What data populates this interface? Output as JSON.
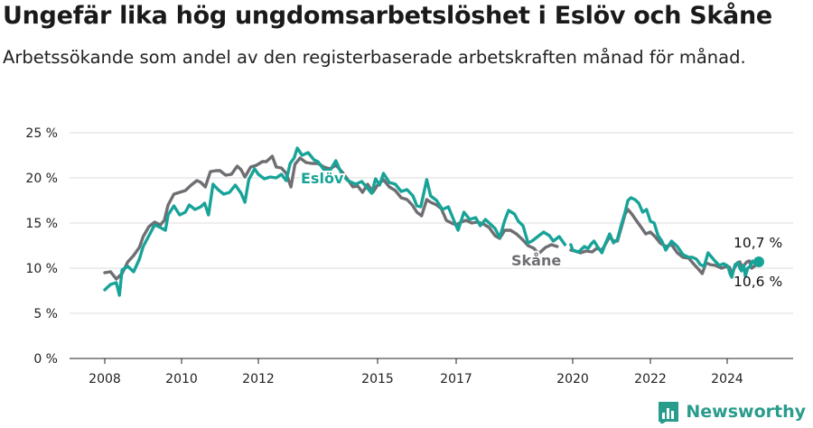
{
  "header": {
    "title": "Ungefär lika hög ungdomsarbetslöshet i Eslöv och Skåne",
    "subtitle": "Arbetssökande som andel av den registerbaserade arbetskraften månad för månad."
  },
  "brand": {
    "name": "Newsworthy",
    "color": "#2a9c8c",
    "icon": "bar-chart-logo-icon"
  },
  "chart_data": {
    "type": "line",
    "x_ticks": [
      2008,
      2010,
      2012,
      2015,
      2017,
      2020,
      2022,
      2024
    ],
    "y_ticks": [
      0,
      5,
      10,
      15,
      20,
      25
    ],
    "y_tick_labels": [
      "0 %",
      "5 %",
      "10 %",
      "15 %",
      "20 %",
      "25 %"
    ],
    "ylim": [
      0,
      25
    ],
    "xlim": [
      2007.5,
      2025.25
    ],
    "grid": true,
    "series": [
      {
        "name": "Eslöv",
        "color": "#17a398",
        "end_label": "10,7 %",
        "points": [
          [
            2008.0,
            7.6
          ],
          [
            2008.15,
            8.2
          ],
          [
            2008.3,
            8.4
          ],
          [
            2008.38,
            7.0
          ],
          [
            2008.45,
            9.8
          ],
          [
            2008.6,
            10.2
          ],
          [
            2008.75,
            9.6
          ],
          [
            2008.9,
            11.0
          ],
          [
            2009.0,
            12.4
          ],
          [
            2009.15,
            13.6
          ],
          [
            2009.3,
            14.8
          ],
          [
            2009.45,
            14.5
          ],
          [
            2009.58,
            14.2
          ],
          [
            2009.65,
            15.9
          ],
          [
            2009.8,
            16.9
          ],
          [
            2009.95,
            15.9
          ],
          [
            2010.1,
            16.2
          ],
          [
            2010.2,
            17.0
          ],
          [
            2010.35,
            16.5
          ],
          [
            2010.5,
            16.8
          ],
          [
            2010.6,
            17.2
          ],
          [
            2010.7,
            15.9
          ],
          [
            2010.82,
            19.3
          ],
          [
            2010.95,
            18.7
          ],
          [
            2011.1,
            18.2
          ],
          [
            2011.25,
            18.4
          ],
          [
            2011.4,
            19.2
          ],
          [
            2011.55,
            18.3
          ],
          [
            2011.65,
            17.3
          ],
          [
            2011.75,
            19.8
          ],
          [
            2011.9,
            21.0
          ],
          [
            2012.0,
            20.4
          ],
          [
            2012.15,
            19.9
          ],
          [
            2012.3,
            20.1
          ],
          [
            2012.45,
            20.0
          ],
          [
            2012.58,
            20.4
          ],
          [
            2012.7,
            19.7
          ],
          [
            2012.8,
            21.6
          ],
          [
            2012.9,
            22.2
          ],
          [
            2012.98,
            23.3
          ],
          [
            2013.1,
            22.5
          ],
          [
            2013.25,
            22.8
          ],
          [
            2013.4,
            22.0
          ],
          [
            2013.5,
            21.8
          ],
          [
            2013.65,
            20.9
          ],
          [
            2013.8,
            20.8
          ],
          [
            2013.95,
            21.9
          ],
          [
            2014.1,
            20.4
          ],
          [
            2014.25,
            19.7
          ],
          [
            2014.45,
            19.3
          ],
          [
            2014.6,
            19.6
          ],
          [
            2014.72,
            19.0
          ],
          [
            2014.85,
            18.3
          ],
          [
            2014.95,
            19.9
          ],
          [
            2015.05,
            19.2
          ],
          [
            2015.15,
            20.5
          ],
          [
            2015.3,
            19.5
          ],
          [
            2015.45,
            19.3
          ],
          [
            2015.6,
            18.5
          ],
          [
            2015.75,
            18.7
          ],
          [
            2015.9,
            18.0
          ],
          [
            2016.0,
            16.9
          ],
          [
            2016.1,
            16.8
          ],
          [
            2016.25,
            19.8
          ],
          [
            2016.35,
            18.0
          ],
          [
            2016.5,
            17.5
          ],
          [
            2016.65,
            16.5
          ],
          [
            2016.8,
            16.8
          ],
          [
            2016.95,
            15.2
          ],
          [
            2017.05,
            14.2
          ],
          [
            2017.2,
            16.2
          ],
          [
            2017.35,
            15.4
          ],
          [
            2017.5,
            15.6
          ],
          [
            2017.62,
            14.7
          ],
          [
            2017.75,
            15.4
          ],
          [
            2017.9,
            14.8
          ],
          [
            2018.0,
            14.4
          ],
          [
            2018.12,
            13.4
          ],
          [
            2018.25,
            15.3
          ],
          [
            2018.35,
            16.4
          ],
          [
            2018.5,
            16.0
          ],
          [
            2018.6,
            15.2
          ],
          [
            2018.72,
            14.7
          ],
          [
            2018.85,
            12.8
          ],
          [
            2018.95,
            13.0
          ],
          [
            2019.1,
            13.5
          ],
          [
            2019.25,
            14.0
          ],
          [
            2019.4,
            13.6
          ],
          [
            2019.5,
            13.0
          ],
          [
            2019.65,
            13.5
          ],
          [
            2019.8,
            12.6
          ]
        ]
      },
      {
        "name": "Skåne",
        "color": "#6e6e73",
        "end_label": "10,6 %",
        "points": [
          [
            2008.0,
            9.5
          ],
          [
            2008.15,
            9.6
          ],
          [
            2008.3,
            8.8
          ],
          [
            2008.45,
            9.4
          ],
          [
            2008.6,
            10.7
          ],
          [
            2008.75,
            11.4
          ],
          [
            2008.9,
            12.3
          ],
          [
            2009.0,
            13.5
          ],
          [
            2009.15,
            14.6
          ],
          [
            2009.3,
            15.1
          ],
          [
            2009.45,
            14.8
          ],
          [
            2009.55,
            15.3
          ],
          [
            2009.65,
            17.0
          ],
          [
            2009.8,
            18.2
          ],
          [
            2009.95,
            18.4
          ],
          [
            2010.1,
            18.6
          ],
          [
            2010.25,
            19.2
          ],
          [
            2010.4,
            19.7
          ],
          [
            2010.5,
            19.5
          ],
          [
            2010.62,
            19.0
          ],
          [
            2010.75,
            20.7
          ],
          [
            2010.9,
            20.8
          ],
          [
            2011.0,
            20.8
          ],
          [
            2011.15,
            20.3
          ],
          [
            2011.3,
            20.4
          ],
          [
            2011.45,
            21.3
          ],
          [
            2011.55,
            20.9
          ],
          [
            2011.65,
            20.1
          ],
          [
            2011.8,
            21.2
          ],
          [
            2011.95,
            21.4
          ],
          [
            2012.1,
            21.8
          ],
          [
            2012.2,
            21.8
          ],
          [
            2012.35,
            22.4
          ],
          [
            2012.45,
            21.2
          ],
          [
            2012.58,
            21.1
          ],
          [
            2012.7,
            20.5
          ],
          [
            2012.82,
            19.0
          ],
          [
            2012.92,
            21.5
          ],
          [
            2013.05,
            22.2
          ],
          [
            2013.2,
            21.7
          ],
          [
            2013.35,
            21.6
          ],
          [
            2013.5,
            21.6
          ],
          [
            2013.65,
            21.2
          ],
          [
            2013.8,
            21.0
          ],
          [
            2013.95,
            21.4
          ],
          [
            2014.1,
            20.7
          ],
          [
            2014.25,
            19.8
          ],
          [
            2014.38,
            19.0
          ],
          [
            2014.5,
            19.1
          ],
          [
            2014.62,
            18.4
          ],
          [
            2014.75,
            19.3
          ],
          [
            2014.88,
            18.4
          ],
          [
            2015.0,
            19.2
          ],
          [
            2015.15,
            19.8
          ],
          [
            2015.3,
            19.0
          ],
          [
            2015.45,
            18.6
          ],
          [
            2015.6,
            17.8
          ],
          [
            2015.75,
            17.6
          ],
          [
            2015.88,
            17.0
          ],
          [
            2016.0,
            16.2
          ],
          [
            2016.12,
            15.8
          ],
          [
            2016.25,
            17.6
          ],
          [
            2016.35,
            17.3
          ],
          [
            2016.5,
            17.0
          ],
          [
            2016.62,
            16.6
          ],
          [
            2016.75,
            15.3
          ],
          [
            2016.88,
            15.0
          ],
          [
            2017.0,
            14.8
          ],
          [
            2017.12,
            15.1
          ],
          [
            2017.25,
            15.3
          ],
          [
            2017.4,
            15.0
          ],
          [
            2017.55,
            15.1
          ],
          [
            2017.7,
            14.9
          ],
          [
            2017.85,
            14.5
          ],
          [
            2018.0,
            13.6
          ],
          [
            2018.12,
            13.3
          ],
          [
            2018.25,
            14.2
          ],
          [
            2018.4,
            14.2
          ],
          [
            2018.55,
            13.8
          ],
          [
            2018.7,
            13.2
          ],
          [
            2018.85,
            12.5
          ],
          [
            2019.0,
            12.2
          ],
          [
            2019.12,
            11.6
          ],
          [
            2019.3,
            12.3
          ],
          [
            2019.45,
            12.6
          ],
          [
            2019.6,
            12.4
          ]
        ]
      }
    ],
    "series_tail": {
      "Eslöv": [
        [
          2019.95,
          12.6
        ],
        [
          2020.0,
          12.0
        ],
        [
          2020.15,
          11.8
        ],
        [
          2020.3,
          12.4
        ],
        [
          2020.4,
          12.2
        ],
        [
          2020.48,
          12.7
        ],
        [
          2020.55,
          13.0
        ],
        [
          2020.65,
          12.3
        ],
        [
          2020.75,
          11.7
        ],
        [
          2020.85,
          12.8
        ],
        [
          2020.95,
          13.8
        ],
        [
          2021.05,
          12.8
        ],
        [
          2021.15,
          13.2
        ],
        [
          2021.25,
          14.8
        ],
        [
          2021.35,
          16.2
        ],
        [
          2021.42,
          17.5
        ],
        [
          2021.5,
          17.8
        ],
        [
          2021.6,
          17.6
        ],
        [
          2021.7,
          17.2
        ],
        [
          2021.8,
          16.2
        ],
        [
          2021.9,
          16.5
        ],
        [
          2022.0,
          15.2
        ],
        [
          2022.1,
          15.0
        ],
        [
          2022.2,
          13.6
        ],
        [
          2022.3,
          13.0
        ],
        [
          2022.4,
          12.0
        ],
        [
          2022.55,
          13.0
        ],
        [
          2022.7,
          12.4
        ],
        [
          2022.85,
          11.5
        ],
        [
          2023.0,
          11.2
        ],
        [
          2023.1,
          11.2
        ],
        [
          2023.2,
          11.0
        ],
        [
          2023.3,
          10.4
        ],
        [
          2023.4,
          10.2
        ],
        [
          2023.5,
          11.7
        ],
        [
          2023.6,
          11.2
        ],
        [
          2023.7,
          10.7
        ],
        [
          2023.8,
          10.3
        ],
        [
          2023.9,
          10.5
        ],
        [
          2024.0,
          10.3
        ],
        [
          2024.1,
          9.9
        ],
        [
          2024.2,
          9.3
        ],
        [
          2024.3,
          9.0
        ],
        [
          2024.4,
          9.8
        ],
        [
          2024.5,
          10.4
        ],
        [
          2024.6,
          10.5
        ],
        [
          2024.7,
          10.6
        ],
        [
          2024.8,
          10.0
        ],
        [
          2024.9,
          9.7
        ],
        [
          2024.95,
          10.1
        ],
        [
          2025.05,
          10.3
        ],
        [
          2025.15,
          9.1
        ],
        [
          2025.3,
          10.0
        ],
        [
          2025.45,
          10.2
        ],
        [
          2025.6,
          10.8
        ],
        [
          2025.75,
          10.5
        ],
        [
          2025.9,
          10.7
        ],
        [
          2026.0,
          10.7
        ]
      ],
      "Skåne": [
        [
          2019.95,
          12.0
        ],
        [
          2020.05,
          11.9
        ],
        [
          2020.2,
          11.7
        ],
        [
          2020.35,
          11.9
        ],
        [
          2020.5,
          11.8
        ],
        [
          2020.62,
          12.2
        ],
        [
          2020.75,
          12.0
        ],
        [
          2020.85,
          12.7
        ],
        [
          2020.95,
          13.5
        ],
        [
          2021.05,
          13.0
        ],
        [
          2021.15,
          13.0
        ],
        [
          2021.25,
          14.5
        ],
        [
          2021.35,
          16.0
        ],
        [
          2021.42,
          16.5
        ],
        [
          2021.52,
          16.0
        ],
        [
          2021.65,
          15.2
        ],
        [
          2021.75,
          14.6
        ],
        [
          2021.88,
          13.8
        ],
        [
          2022.0,
          14.0
        ],
        [
          2022.12,
          13.5
        ],
        [
          2022.25,
          12.8
        ],
        [
          2022.4,
          12.4
        ],
        [
          2022.55,
          12.6
        ],
        [
          2022.7,
          11.7
        ],
        [
          2022.85,
          11.2
        ],
        [
          2023.0,
          11.1
        ],
        [
          2023.12,
          10.5
        ],
        [
          2023.25,
          9.9
        ],
        [
          2023.35,
          9.4
        ],
        [
          2023.45,
          10.6
        ],
        [
          2023.55,
          10.4
        ],
        [
          2023.7,
          10.3
        ],
        [
          2023.85,
          10.0
        ],
        [
          2024.0,
          10.2
        ],
        [
          2024.15,
          10.1
        ],
        [
          2024.3,
          9.3
        ],
        [
          2024.45,
          10.0
        ],
        [
          2024.55,
          10.3
        ],
        [
          2024.65,
          10.6
        ],
        [
          2024.8,
          10.7
        ],
        [
          2024.95,
          10.1
        ],
        [
          2025.1,
          10.4
        ],
        [
          2025.25,
          10.7
        ],
        [
          2025.4,
          10.8
        ],
        [
          2025.55,
          10.0
        ],
        [
          2025.7,
          10.2
        ],
        [
          2025.85,
          10.4
        ],
        [
          2026.0,
          10.6
        ]
      ]
    }
  }
}
